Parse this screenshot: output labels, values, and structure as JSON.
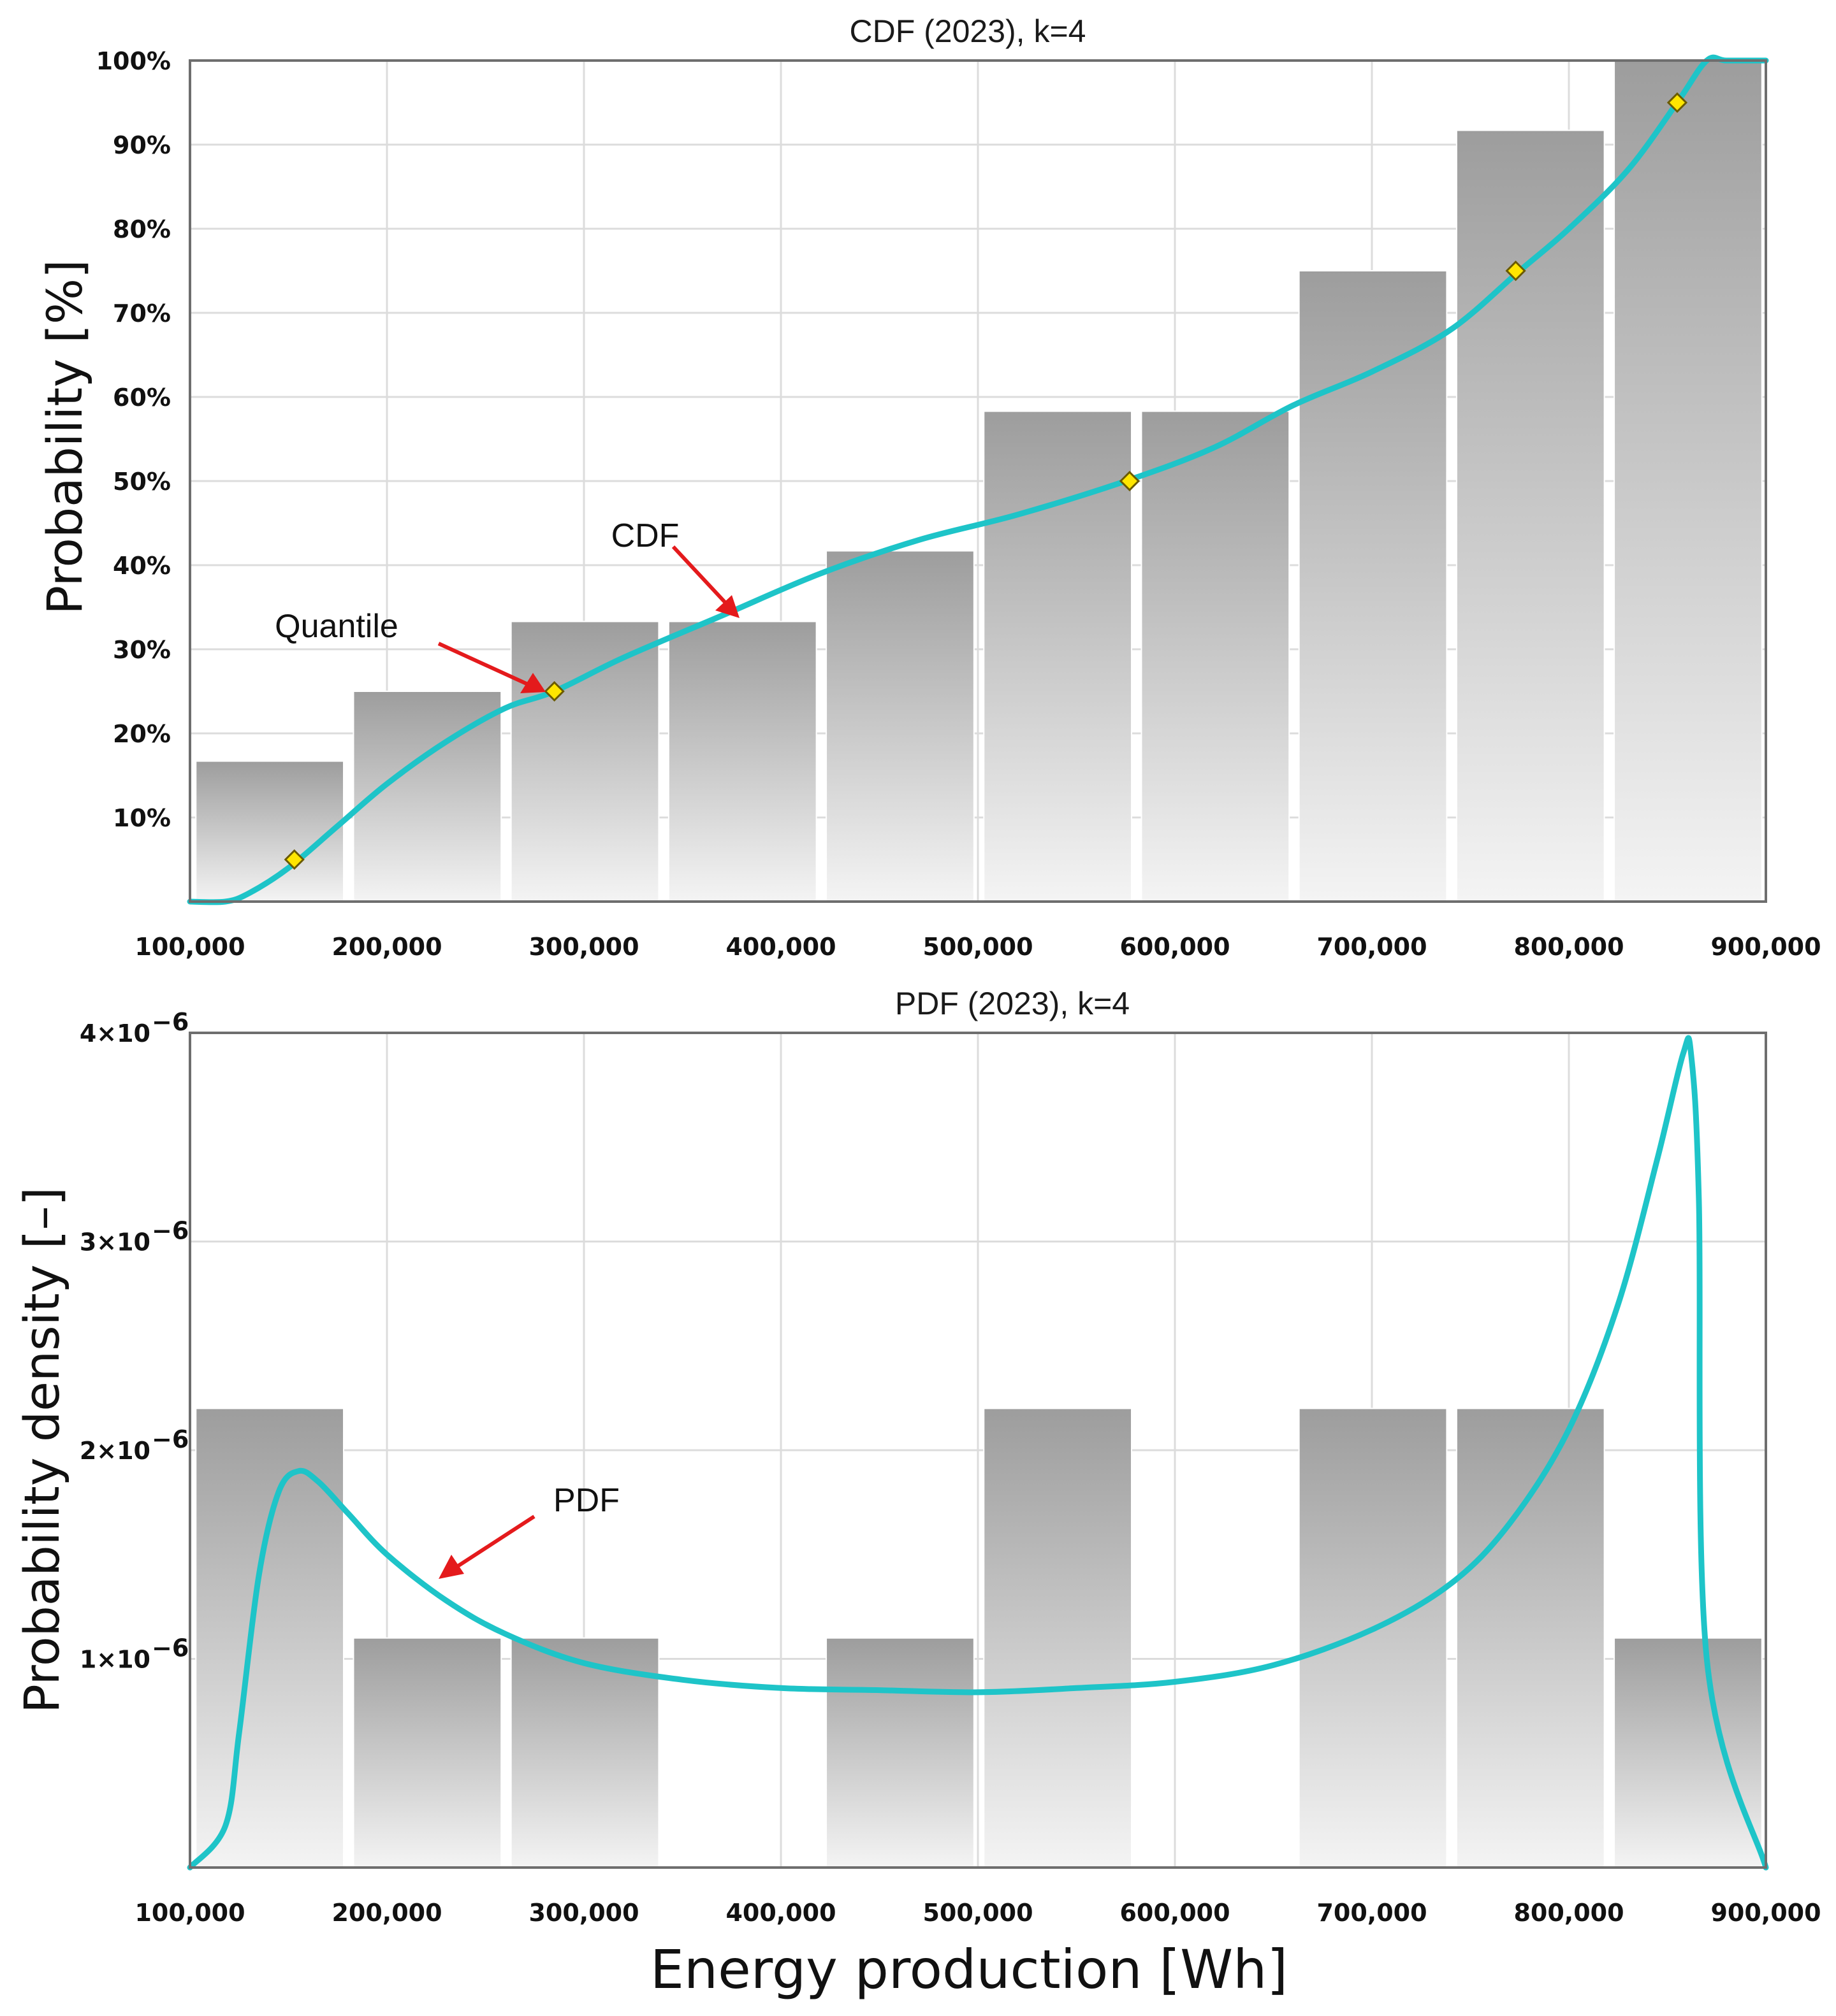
{
  "chart_data": [
    {
      "type": "bar",
      "title": "CDF (2023), k=4",
      "xlabel": "",
      "ylabel": "Probability [%]",
      "xlim": [
        100000,
        900000
      ],
      "ylim": [
        0,
        100
      ],
      "x_ticks": [
        "100,000",
        "200,000",
        "300,000",
        "400,000",
        "500,000",
        "600,000",
        "700,000",
        "800,000",
        "900,000"
      ],
      "y_ticks": [
        "10%",
        "20%",
        "30%",
        "40%",
        "50%",
        "60%",
        "70%",
        "80%",
        "90%",
        "100%"
      ],
      "bars": [
        {
          "x0": 103000,
          "x1": 178000,
          "value": 16.7
        },
        {
          "x0": 183000,
          "x1": 258000,
          "value": 25.0
        },
        {
          "x0": 263000,
          "x1": 338000,
          "value": 33.3
        },
        {
          "x0": 343000,
          "x1": 418000,
          "value": 33.3
        },
        {
          "x0": 423000,
          "x1": 498000,
          "value": 41.7
        },
        {
          "x0": 503000,
          "x1": 578000,
          "value": 58.3
        },
        {
          "x0": 583000,
          "x1": 658000,
          "value": 58.3
        },
        {
          "x0": 663000,
          "x1": 738000,
          "value": 75.0
        },
        {
          "x0": 743000,
          "x1": 818000,
          "value": 91.7
        },
        {
          "x0": 823000,
          "x1": 898000,
          "value": 100.0
        }
      ],
      "series": [
        {
          "name": "CDF",
          "x": [
            100000,
            118000,
            130000,
            150000,
            175000,
            200000,
            230000,
            260000,
            285000,
            320000,
            370000,
            420000,
            470000,
            520000,
            575000,
            620000,
            660000,
            700000,
            740000,
            775000,
            800000,
            830000,
            855000,
            870000,
            880000,
            900000
          ],
          "y": [
            0,
            0,
            1,
            4,
            9,
            14,
            19,
            23,
            25,
            29,
            34,
            39,
            43,
            46,
            50,
            54,
            59,
            63,
            68,
            75,
            80,
            87,
            95,
            100,
            100,
            100
          ]
        }
      ],
      "quantiles": [
        {
          "x": 153000,
          "y": 5
        },
        {
          "x": 285000,
          "y": 25
        },
        {
          "x": 577000,
          "y": 50
        },
        {
          "x": 773000,
          "y": 75
        },
        {
          "x": 855000,
          "y": 95
        }
      ],
      "annotations": [
        {
          "text": "Quantile",
          "target": {
            "x": 285000,
            "y": 25
          }
        },
        {
          "text": "CDF",
          "target": {
            "x": 380000,
            "y": 34.6
          }
        }
      ]
    },
    {
      "type": "bar",
      "title": "PDF (2023), k=4",
      "xlabel": "Energy production [Wh]",
      "ylabel": "Probability density [–]",
      "xlim": [
        100000,
        900000
      ],
      "ylim": [
        0,
        4e-06
      ],
      "x_ticks": [
        "100,000",
        "200,000",
        "300,000",
        "400,000",
        "500,000",
        "600,000",
        "700,000",
        "800,000",
        "900,000"
      ],
      "y_ticks": [
        {
          "base": "1×10",
          "exp": "−6"
        },
        {
          "base": "2×10",
          "exp": "−6"
        },
        {
          "base": "3×10",
          "exp": "−6"
        },
        {
          "base": "4×10",
          "exp": "−6"
        }
      ],
      "bars": [
        {
          "x0": 103000,
          "x1": 178000,
          "value": 2.2e-06
        },
        {
          "x0": 183000,
          "x1": 258000,
          "value": 1.1e-06
        },
        {
          "x0": 263000,
          "x1": 338000,
          "value": 1.1e-06
        },
        {
          "x0": 423000,
          "x1": 498000,
          "value": 1.1e-06
        },
        {
          "x0": 503000,
          "x1": 578000,
          "value": 2.2e-06
        },
        {
          "x0": 663000,
          "x1": 738000,
          "value": 2.2e-06
        },
        {
          "x0": 743000,
          "x1": 818000,
          "value": 2.2e-06
        },
        {
          "x0": 823000,
          "x1": 898000,
          "value": 1.1e-06
        }
      ],
      "series": [
        {
          "name": "PDF",
          "x": [
            100000,
            118000,
            125000,
            135000,
            145000,
            155000,
            165000,
            180000,
            200000,
            230000,
            260000,
            300000,
            350000,
            400000,
            450000,
            500000,
            550000,
            600000,
            650000,
            700000,
            740000,
            770000,
            800000,
            825000,
            845000,
            858000,
            862000,
            866000,
            870000,
            900000
          ],
          "y": [
            0,
            2e-07,
            6.5e-07,
            1.4e-06,
            1.8e-06,
            1.9e-06,
            1.85e-06,
            1.7e-06,
            1.5e-06,
            1.28e-06,
            1.12e-06,
            9.8e-07,
            9e-07,
            8.6e-07,
            8.5e-07,
            8.4e-07,
            8.6e-07,
            8.9e-07,
            9.7e-07,
            1.14e-06,
            1.36e-06,
            1.65e-06,
            2.1e-06,
            2.7e-06,
            3.4e-06,
            3.9e-06,
            3.9e-06,
            3.2e-06,
            1e-06,
            0
          ]
        }
      ],
      "annotations": [
        {
          "text": "PDF",
          "target": {
            "x": 225000,
            "y": 1.34e-06
          }
        }
      ]
    }
  ]
}
